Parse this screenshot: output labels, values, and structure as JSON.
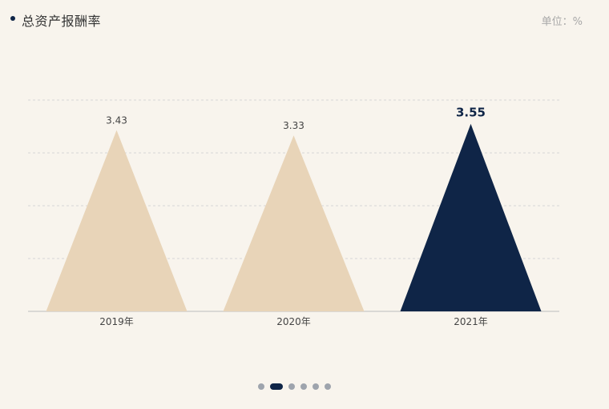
{
  "header": {
    "title": "总资产报酬率",
    "unit": "单位：%"
  },
  "colors": {
    "background": "#f8f4ed",
    "bar_default": "#e8d4b8",
    "bar_highlight": "#0f2547",
    "grid": "#d6d6d6",
    "axis": "#bdbdbd",
    "pager_inactive": "#9ea4ad",
    "pager_active": "#0f2547"
  },
  "chart_data": {
    "type": "bar",
    "bar_shape": "triangle",
    "categories": [
      "2019年",
      "2020年",
      "2021年"
    ],
    "values": [
      3.43,
      3.33,
      3.55
    ],
    "value_labels": [
      "3.43",
      "3.33",
      "3.55"
    ],
    "highlight_index": 2,
    "ylim": [
      0,
      4
    ],
    "grid": true,
    "title": "总资产报酬率",
    "xlabel": "",
    "ylabel": ""
  },
  "pager": {
    "count": 6,
    "active_index": 1
  }
}
